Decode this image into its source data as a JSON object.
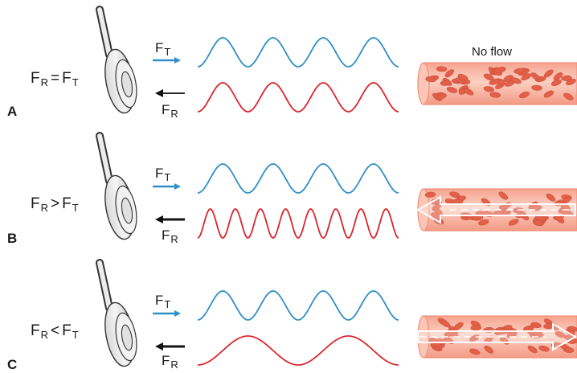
{
  "colors": {
    "transmitted_wave": "#2f8fc6",
    "received_wave": "#d9262b",
    "transmitted_arrow": "#2f8fc6",
    "received_arrow": "#111111",
    "vessel_fill": "#f8b9a6",
    "vessel_edge": "#ef8f78",
    "red_cell": "#e2604a",
    "transducer_gray": "#e9e9e9",
    "outline": "#333333"
  },
  "icons": {
    "transducer": "ultrasound-transducer-probe-icon",
    "vessel": "blood-vessel-icon",
    "flow_arrow": "flow-direction-arrow-icon"
  },
  "panels": [
    {
      "letter": "A",
      "relation": {
        "left": "F",
        "left_sub": "R",
        "op": "=",
        "right": "F",
        "right_sub": "T"
      },
      "transmitted_label": {
        "base": "F",
        "sub": "T"
      },
      "received_label": {
        "base": "F",
        "sub": "R"
      },
      "transmitted_cycles": 4,
      "received_cycles": 4,
      "flow": "none",
      "flow_text": "No flow"
    },
    {
      "letter": "B",
      "relation": {
        "left": "F",
        "left_sub": "R",
        "op": ">",
        "right": "F",
        "right_sub": "T"
      },
      "transmitted_label": {
        "base": "F",
        "sub": "T"
      },
      "received_label": {
        "base": "F",
        "sub": "R"
      },
      "transmitted_cycles": 4,
      "received_cycles": 8,
      "flow": "toward transducer"
    },
    {
      "letter": "C",
      "relation": {
        "left": "F",
        "left_sub": "R",
        "op": "<",
        "right": "F",
        "right_sub": "T"
      },
      "transmitted_label": {
        "base": "F",
        "sub": "T"
      },
      "received_label": {
        "base": "F",
        "sub": "R"
      },
      "transmitted_cycles": 4,
      "received_cycles": 2,
      "flow": "away from transducer"
    }
  ]
}
